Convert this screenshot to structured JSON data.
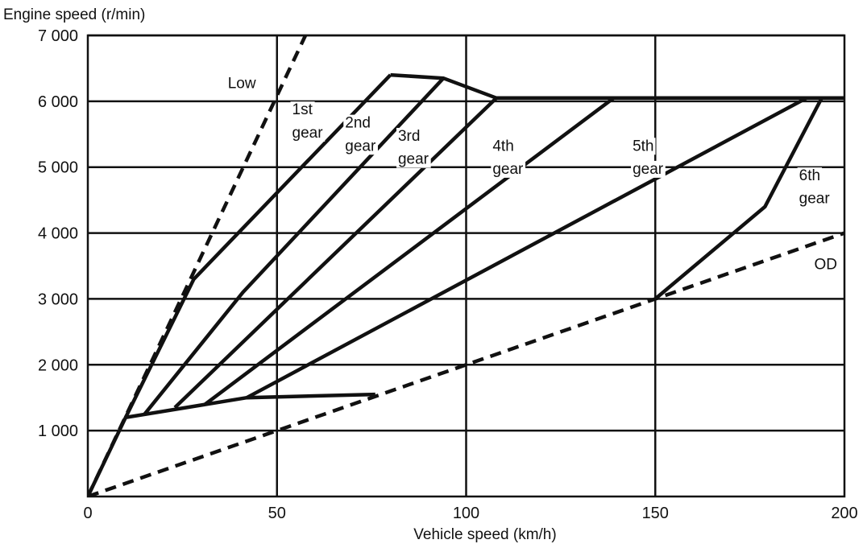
{
  "chart_data": {
    "type": "line",
    "ylabel": "Engine speed (r/min)",
    "xlabel": "Vehicle speed  (km/h)",
    "xlim": [
      0,
      200
    ],
    "ylim": [
      0,
      7000
    ],
    "x_ticks": [
      0,
      50,
      100,
      150,
      200
    ],
    "x_tick_labels": [
      "0",
      "50",
      "100",
      "150",
      "200"
    ],
    "y_ticks": [
      1000,
      2000,
      3000,
      4000,
      5000,
      6000,
      7000
    ],
    "y_tick_labels": [
      "1 000",
      "2 000",
      "3 000",
      "4 000",
      "5 000",
      "6 000",
      "7 000"
    ],
    "grid": true,
    "series": [
      {
        "name": "Low",
        "style": "dashed",
        "x": [
          0,
          60
        ],
        "y": [
          0,
          7300
        ]
      },
      {
        "name": "OD",
        "style": "dashed",
        "x": [
          0,
          200
        ],
        "y": [
          0,
          4000
        ]
      },
      {
        "name": "1st gear",
        "style": "solid",
        "x": [
          10,
          28,
          80
        ],
        "y": [
          1200,
          3300,
          6400
        ]
      },
      {
        "name": "2nd gear",
        "style": "solid",
        "x": [
          15,
          41,
          94
        ],
        "y": [
          1250,
          3100,
          6350
        ]
      },
      {
        "name": "3rd gear",
        "style": "solid",
        "x": [
          23,
          108
        ],
        "y": [
          1350,
          6050
        ]
      },
      {
        "name": "4th gear",
        "style": "solid",
        "x": [
          31,
          139
        ],
        "y": [
          1400,
          6050
        ]
      },
      {
        "name": "5th gear",
        "style": "solid",
        "x": [
          42,
          190
        ],
        "y": [
          1500,
          6050
        ]
      },
      {
        "name": "6th gear",
        "style": "solid",
        "x": [
          150,
          179,
          194
        ],
        "y": [
          3000,
          4400,
          6050
        ]
      },
      {
        "name": "",
        "style": "solid",
        "x": [
          0,
          10,
          42,
          76
        ],
        "y": [
          0,
          1200,
          1500,
          1550
        ]
      },
      {
        "name": "",
        "style": "solid",
        "x": [
          80,
          94,
          108,
          200
        ],
        "y": [
          6400,
          6350,
          6050,
          6050
        ]
      }
    ],
    "annotations": [
      {
        "text": "Low",
        "x": 37,
        "y": 6200
      },
      {
        "text": "1st",
        "x": 54,
        "y": 5800
      },
      {
        "text": "gear",
        "x": 54,
        "y": 5450
      },
      {
        "text": "2nd",
        "x": 68,
        "y": 5600
      },
      {
        "text": "gear",
        "x": 68,
        "y": 5250
      },
      {
        "text": "3rd",
        "x": 82,
        "y": 5400
      },
      {
        "text": "gear",
        "x": 82,
        "y": 5050
      },
      {
        "text": "4th",
        "x": 107,
        "y": 5250
      },
      {
        "text": "gear",
        "x": 107,
        "y": 4900
      },
      {
        "text": "5th",
        "x": 144,
        "y": 5250
      },
      {
        "text": "gear",
        "x": 144,
        "y": 4900
      },
      {
        "text": "6th",
        "x": 188,
        "y": 4800
      },
      {
        "text": "gear",
        "x": 188,
        "y": 4450
      },
      {
        "text": "OD",
        "x": 192,
        "y": 3450
      }
    ]
  }
}
